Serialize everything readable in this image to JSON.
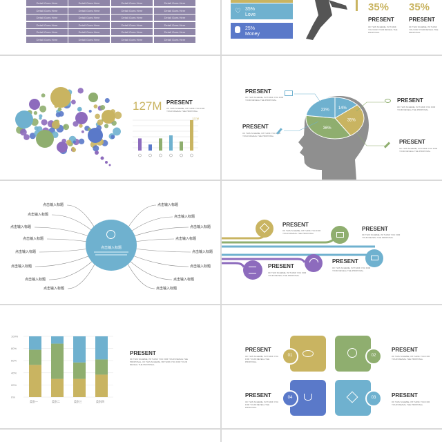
{
  "colors": {
    "gold": "#c9b461",
    "green": "#8fae6f",
    "blue": "#6fb1cf",
    "purple": "#8d6bbd",
    "royal": "#5a79c9",
    "gray": "#555555",
    "head": "#8f8f8f"
  },
  "slide1": {
    "cell_text": "Detail Goes Here",
    "rows": 6
  },
  "slide2": {
    "stat1": {
      "value": "35%",
      "label": "Love",
      "icon": "heart-icon"
    },
    "stat2": {
      "value": "25%",
      "label": "Money",
      "icon": "money-bag-icon"
    },
    "big1": "35%",
    "big2": "35%",
    "present": "PRESENT",
    "desc": "OF THIS SCHEME, I'M THINK YOU FOR YOUR REVEAL THE PROPOSAL"
  },
  "slide3": {
    "stat": "127M",
    "present": "PRESENT",
    "desc": "OF THIS SCHEME, I'M THINK YOU FOR YOUR REVEAL THE PROPOSAL",
    "top_label": "127M",
    "chart_data": {
      "type": "bar",
      "values": [
        4,
        2,
        4,
        5,
        3,
        10
      ],
      "icons": [
        "print-icon",
        "wechat-icon",
        "weibo-icon",
        "twitter-icon",
        "facebook-icon",
        "qq-icon"
      ]
    }
  },
  "slide4": {
    "present": "PRESENT",
    "desc": "OF THIS SCHEME, I'M THINK YOU FOR YOUR REVEAL THE PROPOSAL",
    "pie": {
      "p1": "14%",
      "p2": "23%",
      "p3": "36%",
      "p4": "35%"
    }
  },
  "slide5": {
    "center_title": "点击输入标题",
    "label": "点击输入标题"
  },
  "slide6": {
    "present": "PRESENT",
    "desc": "OF THIS SCHEME, I'M THINK YOU FOR YOUR REVEAL THE PROPOSAL"
  },
  "slide7": {
    "present": "PRESENT",
    "desc": "OF THIS SCHEME, I'M THINK YOU FOR YOUR REVEAL THE PROPOSAL. OF THIS SCHEME, I'M THINK YOU FOR YOUR REVEAL THE PROPOSAL",
    "chart_data": {
      "type": "bar",
      "stacked": true,
      "categories": [
        "类别一",
        "类别二",
        "类别三",
        "类别四"
      ],
      "yticks": [
        "0%",
        "20%",
        "40%",
        "60%",
        "80%",
        "100%"
      ],
      "series": [
        {
          "values": [
            53,
            30,
            30,
            37
          ]
        },
        {
          "values": [
            25,
            58,
            27,
            25
          ]
        },
        {
          "values": [
            22,
            12,
            43,
            38
          ]
        }
      ]
    }
  },
  "slide8": {
    "present": "PRESENT",
    "desc": "OF THIS SCHEME, I'M THINK YOU FOR YOUR REVEAL THE PROPOSAL",
    "n1": "01",
    "n2": "02",
    "n3": "03",
    "n4": "04"
  }
}
